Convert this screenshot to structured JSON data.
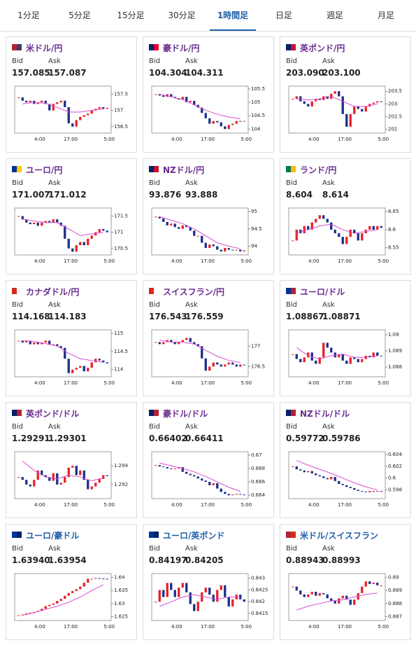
{
  "tabs": [
    "1分足",
    "5分足",
    "15分足",
    "30分足",
    "1時間足",
    "日足",
    "週足",
    "月足"
  ],
  "active_tab": 4,
  "bid_label": "Bid",
  "ask_label": "Ask",
  "time_labels": [
    "4:00",
    "17:00",
    "5:00"
  ],
  "up_color": "#e8202a",
  "down_color": "#1b2f8a",
  "ma_color": "#d94fd0",
  "cards": [
    {
      "name": "米ドル/円",
      "name_color": "#6a2c91",
      "flag": [
        "#b22234",
        "#3c3b6e"
      ],
      "bid": "157.085",
      "ask": "157.087",
      "chart": {
        "type": "candlestick",
        "ylim": [
          156.3,
          157.75
        ],
        "yticks": [
          157.5,
          157,
          156.5
        ],
        "closes": [
          157.4,
          157.3,
          157.25,
          157.3,
          157.2,
          157.25,
          157.3,
          157.2,
          157.0,
          157.2,
          157.25,
          157.3,
          157.1,
          156.6,
          156.5,
          156.7,
          156.8,
          156.85,
          156.9,
          157.0,
          157.05,
          157.1,
          157.05,
          157.08
        ],
        "ma": [
          157.2,
          157.25,
          157.22,
          157.1,
          156.95,
          156.95,
          157.0,
          157.05
        ]
      }
    },
    {
      "name": "豪ドル/円",
      "name_color": "#6a2c91",
      "flag": [
        "#012169",
        "#e4002b"
      ],
      "bid": "104.304",
      "ask": "104.311",
      "chart": {
        "type": "candlestick",
        "ylim": [
          103.85,
          105.6
        ],
        "yticks": [
          105.5,
          105,
          104.5,
          104
        ],
        "closes": [
          105.3,
          105.25,
          105.2,
          105.3,
          105.2,
          105.15,
          105.1,
          105.2,
          105.0,
          105.05,
          104.9,
          104.8,
          104.6,
          104.4,
          104.2,
          104.3,
          104.25,
          104.1,
          104.0,
          104.15,
          104.2,
          104.3,
          104.28,
          104.3
        ],
        "ma": [
          105.3,
          105.2,
          105.1,
          104.9,
          104.7,
          104.55,
          104.45,
          104.38
        ]
      }
    },
    {
      "name": "英ポンド/円",
      "name_color": "#6a2c91",
      "flag": [
        "#012169",
        "#c8102e"
      ],
      "bid": "203.090",
      "ask": "203.100",
      "chart": {
        "type": "candlestick",
        "ylim": [
          201.85,
          203.7
        ],
        "yticks": [
          203.5,
          203,
          202.5,
          202
        ],
        "closes": [
          203.2,
          203.3,
          203.1,
          203.0,
          202.9,
          203.1,
          203.2,
          203.15,
          203.3,
          203.2,
          203.4,
          203.5,
          203.3,
          202.6,
          202.1,
          202.6,
          202.9,
          202.8,
          202.7,
          202.9,
          203.0,
          203.05,
          203.1,
          203.09
        ],
        "ma": [
          203.2,
          203.15,
          203.2,
          203.3,
          203.1,
          202.9,
          202.9,
          203.0
        ]
      }
    },
    {
      "name": "ユーロ/円",
      "name_color": "#6a2c91",
      "flag": [
        "#003399",
        "#ffcc00"
      ],
      "bid": "171.007",
      "ask": "171.012",
      "chart": {
        "type": "candlestick",
        "ylim": [
          170.3,
          171.75
        ],
        "yticks": [
          171.5,
          171,
          170.5
        ],
        "closes": [
          171.5,
          171.4,
          171.3,
          171.25,
          171.3,
          171.2,
          171.3,
          171.35,
          171.3,
          171.4,
          171.3,
          171.2,
          170.8,
          170.5,
          170.4,
          170.6,
          170.7,
          170.6,
          170.8,
          170.9,
          171.0,
          171.1,
          171.05,
          171.0
        ],
        "ma": [
          171.4,
          171.35,
          171.3,
          171.3,
          171.1,
          170.9,
          170.95,
          171.0
        ]
      }
    },
    {
      "name": "NZドル/円",
      "name_color": "#6a2c91",
      "flag": [
        "#012169",
        "#c8102e"
      ],
      "bid": "93.876",
      "ask": "93.888",
      "chart": {
        "type": "candlestick",
        "ylim": [
          93.75,
          95.1
        ],
        "yticks": [
          95,
          94.5,
          94
        ],
        "closes": [
          94.85,
          94.8,
          94.7,
          94.6,
          94.65,
          94.55,
          94.5,
          94.6,
          94.55,
          94.45,
          94.3,
          94.3,
          94.1,
          93.95,
          94.05,
          94.0,
          93.9,
          93.85,
          93.95,
          93.9,
          93.88,
          93.9,
          93.85,
          93.88
        ],
        "ma": [
          94.85,
          94.75,
          94.65,
          94.5,
          94.3,
          94.1,
          94.0,
          93.93
        ]
      }
    },
    {
      "name": "ランド/円",
      "name_color": "#6a2c91",
      "flag": [
        "#007a4d",
        "#ffb612"
      ],
      "bid": "8.604",
      "ask": "8.614",
      "chart": {
        "type": "candlestick",
        "ylim": [
          8.53,
          8.66
        ],
        "yticks": [
          8.65,
          8.6,
          8.55
        ],
        "closes": [
          8.57,
          8.6,
          8.59,
          8.61,
          8.6,
          8.62,
          8.63,
          8.64,
          8.63,
          8.62,
          8.6,
          8.59,
          8.58,
          8.56,
          8.58,
          8.6,
          8.59,
          8.57,
          8.59,
          8.6,
          8.61,
          8.6,
          8.61,
          8.605
        ],
        "ma": [
          8.59,
          8.6,
          8.61,
          8.615,
          8.6,
          8.59,
          8.595,
          8.6
        ]
      }
    },
    {
      "name": "カナダドル/円",
      "name_color": "#6a2c91",
      "flag": [
        "#d52b1e",
        "#ffffff"
      ],
      "bid": "114.168",
      "ask": "114.183",
      "chart": {
        "type": "candlestick",
        "ylim": [
          113.8,
          115.1
        ],
        "yticks": [
          115,
          114.5,
          114
        ],
        "closes": [
          114.8,
          114.75,
          114.8,
          114.7,
          114.75,
          114.7,
          114.75,
          114.8,
          114.7,
          114.7,
          114.65,
          114.6,
          114.3,
          113.9,
          114.0,
          114.05,
          114.1,
          113.95,
          114.05,
          114.2,
          114.3,
          114.25,
          114.2,
          114.17
        ],
        "ma": [
          114.8,
          114.78,
          114.72,
          114.65,
          114.45,
          114.3,
          114.25,
          114.2
        ]
      }
    },
    {
      "name": "スイスフラン/円",
      "name_color": "#6a2c91",
      "flag": [
        "#da291c",
        "#ffffff"
      ],
      "bid": "176.543",
      "ask": "176.559",
      "chart": {
        "type": "candlestick",
        "ylim": [
          176.25,
          177.4
        ],
        "yticks": [
          177,
          176.5
        ],
        "closes": [
          177.1,
          177.05,
          177.1,
          177.15,
          177.1,
          177.05,
          177.1,
          177.15,
          177.2,
          177.1,
          177.05,
          177.0,
          176.7,
          176.4,
          176.5,
          176.6,
          176.55,
          176.5,
          176.55,
          176.6,
          176.55,
          176.5,
          176.55,
          176.54
        ],
        "ma": [
          177.15,
          177.1,
          177.1,
          177.05,
          176.9,
          176.75,
          176.65,
          176.6
        ]
      }
    },
    {
      "name": "ユーロ/ドル",
      "name_color": "#6a2c91",
      "flag": [
        "#003399",
        "#b22234"
      ],
      "bid": "1.08867",
      "ask": "1.08871",
      "chart": {
        "type": "candlestick",
        "ylim": [
          1.0874,
          1.0903
        ],
        "yticks": [
          1.09,
          1.089,
          1.088
        ],
        "closes": [
          1.0888,
          1.0885,
          1.0883,
          1.0886,
          1.0889,
          1.0884,
          1.0882,
          1.0886,
          1.0895,
          1.0892,
          1.0889,
          1.0886,
          1.0888,
          1.0884,
          1.0882,
          1.0886,
          1.0885,
          1.0883,
          1.0885,
          1.0887,
          1.0886,
          1.0889,
          1.0887,
          1.08867
        ],
        "ma": [
          1.0892,
          1.0887,
          1.0885,
          1.0887,
          1.0888,
          1.0886,
          1.0886,
          1.0887
        ]
      }
    },
    {
      "name": "英ポンド/ドル",
      "name_color": "#6a2c91",
      "flag": [
        "#012169",
        "#b22234"
      ],
      "bid": "1.29291",
      "ask": "1.29301",
      "chart": {
        "type": "candlestick",
        "ylim": [
          1.2905,
          1.2955
        ],
        "yticks": [
          1.294,
          1.292
        ],
        "closes": [
          1.2928,
          1.2925,
          1.292,
          1.2918,
          1.2925,
          1.2935,
          1.293,
          1.2928,
          1.2924,
          1.2932,
          1.292,
          1.2922,
          1.2928,
          1.2938,
          1.294,
          1.293,
          1.2935,
          1.2925,
          1.2915,
          1.2918,
          1.2922,
          1.2926,
          1.293,
          1.2929
        ],
        "ma": [
          1.2945,
          1.2935,
          1.2928,
          1.2926,
          1.293,
          1.2928,
          1.2924,
          1.2927
        ]
      }
    },
    {
      "name": "豪ドル/ドル",
      "name_color": "#6a2c91",
      "flag": [
        "#012169",
        "#b22234"
      ],
      "bid": "0.66402",
      "ask": "0.66411",
      "chart": {
        "type": "candlestick",
        "ylim": [
          0.6635,
          0.6705
        ],
        "yticks": [
          0.67,
          0.668,
          0.666,
          0.664
        ],
        "closes": [
          0.6685,
          0.6683,
          0.6682,
          0.668,
          0.6679,
          0.668,
          0.6682,
          0.6675,
          0.6672,
          0.667,
          0.6668,
          0.6665,
          0.6662,
          0.666,
          0.6655,
          0.6658,
          0.665,
          0.6645,
          0.6642,
          0.664,
          0.6641,
          0.6642,
          0.6641,
          0.664
        ],
        "ma": [
          0.6688,
          0.6684,
          0.668,
          0.6675,
          0.6668,
          0.666,
          0.6652,
          0.6646
        ]
      }
    },
    {
      "name": "NZドル/ドル",
      "name_color": "#6a2c91",
      "flag": [
        "#012169",
        "#b22234"
      ],
      "bid": "0.59772",
      "ask": "0.59786",
      "chart": {
        "type": "candlestick",
        "ylim": [
          0.5965,
          0.6045
        ],
        "yticks": [
          0.604,
          0.602,
          0.6,
          0.598
        ],
        "closes": [
          0.602,
          0.6015,
          0.6013,
          0.601,
          0.6012,
          0.6008,
          0.6005,
          0.6003,
          0.6,
          0.5998,
          0.6002,
          0.5995,
          0.599,
          0.5988,
          0.5985,
          0.5983,
          0.598,
          0.5978,
          0.5977,
          0.5976,
          0.5978,
          0.5977,
          0.5978,
          0.5977
        ],
        "ma": [
          0.603,
          0.6022,
          0.6015,
          0.6008,
          0.6,
          0.5992,
          0.5985,
          0.598
        ]
      }
    },
    {
      "name": "ユーロ/豪ドル",
      "name_color": "#1f5fa9",
      "flag": [
        "#003399",
        "#012169"
      ],
      "bid": "1.63940",
      "ask": "1.63954",
      "chart": {
        "type": "candlestick",
        "ylim": [
          1.6235,
          1.6415
        ],
        "yticks": [
          1.64,
          1.635,
          1.63,
          1.625
        ],
        "closes": [
          1.6255,
          1.6258,
          1.6262,
          1.6265,
          1.6268,
          1.6272,
          1.628,
          1.629,
          1.6295,
          1.63,
          1.631,
          1.6318,
          1.633,
          1.634,
          1.6348,
          1.6355,
          1.6365,
          1.638,
          1.6395,
          1.6395,
          1.6398,
          1.6396,
          1.6395,
          1.6394
        ],
        "ma": [
          1.6255,
          1.6265,
          1.6278,
          1.629,
          1.6305,
          1.6325,
          1.635,
          1.6372
        ]
      }
    },
    {
      "name": "ユーロ/英ポンド",
      "name_color": "#1f5fa9",
      "flag": [
        "#003399",
        "#012169"
      ],
      "bid": "0.84197",
      "ask": "0.84205",
      "chart": {
        "type": "candlestick",
        "ylim": [
          0.8412,
          0.8432
        ],
        "yticks": [
          0.843,
          0.8425,
          0.842,
          0.8415
        ],
        "closes": [
          0.842,
          0.8425,
          0.8422,
          0.8428,
          0.8425,
          0.8422,
          0.8426,
          0.8428,
          0.8424,
          0.8419,
          0.8416,
          0.842,
          0.8424,
          0.8426,
          0.8423,
          0.842,
          0.8425,
          0.8427,
          0.8422,
          0.8418,
          0.8421,
          0.8423,
          0.8421,
          0.842
        ],
        "ma": [
          0.8418,
          0.842,
          0.8422,
          0.8423,
          0.8422,
          0.8421,
          0.8422,
          0.8422
        ]
      }
    },
    {
      "name": "米ドル/スイスフラン",
      "name_color": "#1f5fa9",
      "flag": [
        "#b22234",
        "#da291c"
      ],
      "bid": "0.88943",
      "ask": "0.88993",
      "chart": {
        "type": "candlestick",
        "ylim": [
          0.8867,
          0.8903
        ],
        "yticks": [
          0.89,
          0.889,
          0.888,
          0.887
        ],
        "closes": [
          0.8893,
          0.889,
          0.8887,
          0.8885,
          0.8887,
          0.8889,
          0.8886,
          0.8888,
          0.8887,
          0.8884,
          0.8882,
          0.888,
          0.8884,
          0.8886,
          0.8883,
          0.8879,
          0.8883,
          0.8888,
          0.8893,
          0.8897,
          0.8895,
          0.8896,
          0.8894,
          0.8894
        ],
        "ma": [
          0.8875,
          0.8878,
          0.888,
          0.8882,
          0.8883,
          0.8885,
          0.8887,
          0.8888
        ]
      }
    }
  ]
}
